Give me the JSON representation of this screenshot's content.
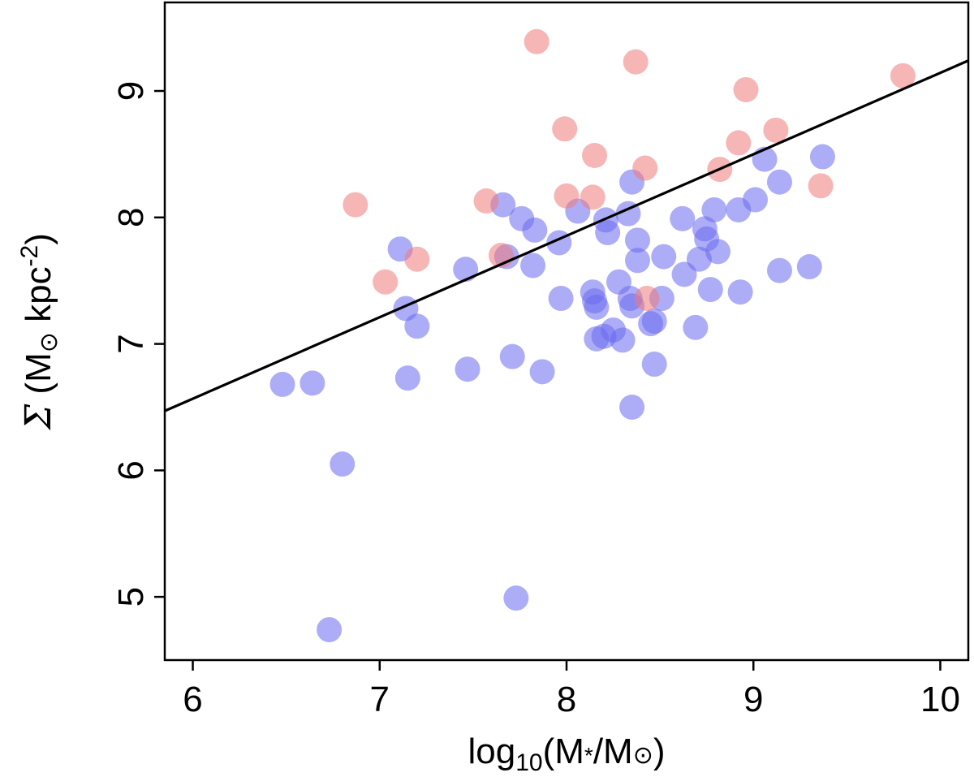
{
  "chart_data": {
    "type": "scatter",
    "title": "",
    "xlabel": {
      "prefix": "log",
      "subscript": "10",
      "open": "(M",
      "star": "*",
      "slash": "/M",
      "sun": "⊙",
      "close": ")"
    },
    "ylabel": {
      "sigma": "Σ",
      "open": " (M",
      "sun": "⊙",
      "unit": " kpc",
      "exp": "-2",
      "close": ")"
    },
    "xlim": [
      5.85,
      10.15
    ],
    "ylim": [
      4.5,
      9.7
    ],
    "xticks": [
      6,
      7,
      8,
      9,
      10
    ],
    "yticks": [
      5,
      6,
      7,
      8,
      9
    ],
    "grid": false,
    "colors": {
      "blue": "#6a6af0",
      "red": "#f07a7a",
      "line": "#000000",
      "frame": "#000000"
    },
    "fit_line": {
      "x": [
        5.85,
        10.15
      ],
      "y": [
        6.47,
        9.24
      ]
    },
    "series": [
      {
        "name": "blue",
        "color": "#6a6af0",
        "points": [
          [
            6.48,
            6.68
          ],
          [
            6.64,
            6.69
          ],
          [
            6.73,
            4.74
          ],
          [
            6.8,
            6.05
          ],
          [
            7.11,
            7.75
          ],
          [
            7.14,
            7.28
          ],
          [
            7.15,
            6.73
          ],
          [
            7.2,
            7.14
          ],
          [
            7.46,
            7.59
          ],
          [
            7.47,
            6.8
          ],
          [
            7.66,
            8.1
          ],
          [
            7.68,
            7.69
          ],
          [
            7.71,
            6.9
          ],
          [
            7.73,
            4.99
          ],
          [
            7.76,
            7.99
          ],
          [
            7.82,
            7.62
          ],
          [
            7.83,
            7.9
          ],
          [
            7.87,
            6.78
          ],
          [
            7.96,
            7.8
          ],
          [
            7.97,
            7.36
          ],
          [
            8.06,
            8.05
          ],
          [
            8.14,
            7.41
          ],
          [
            8.15,
            7.34
          ],
          [
            8.16,
            7.29
          ],
          [
            8.16,
            7.04
          ],
          [
            8.2,
            7.06
          ],
          [
            8.21,
            7.98
          ],
          [
            8.22,
            7.88
          ],
          [
            8.25,
            7.11
          ],
          [
            8.28,
            7.49
          ],
          [
            8.3,
            7.03
          ],
          [
            8.33,
            8.03
          ],
          [
            8.34,
            7.36
          ],
          [
            8.35,
            7.3
          ],
          [
            8.35,
            6.5
          ],
          [
            8.35,
            8.28
          ],
          [
            8.38,
            7.82
          ],
          [
            8.38,
            7.66
          ],
          [
            8.45,
            7.16
          ],
          [
            8.47,
            7.18
          ],
          [
            8.47,
            6.84
          ],
          [
            8.51,
            7.36
          ],
          [
            8.52,
            7.69
          ],
          [
            8.62,
            7.99
          ],
          [
            8.63,
            7.55
          ],
          [
            8.69,
            7.13
          ],
          [
            8.71,
            7.67
          ],
          [
            8.74,
            7.91
          ],
          [
            8.75,
            7.83
          ],
          [
            8.77,
            7.43
          ],
          [
            8.79,
            8.06
          ],
          [
            8.81,
            7.73
          ],
          [
            8.92,
            8.06
          ],
          [
            8.93,
            7.41
          ],
          [
            9.01,
            8.14
          ],
          [
            9.06,
            8.46
          ],
          [
            9.14,
            8.28
          ],
          [
            9.14,
            7.58
          ],
          [
            9.3,
            7.61
          ],
          [
            9.37,
            8.48
          ]
        ]
      },
      {
        "name": "red",
        "color": "#f07a7a",
        "points": [
          [
            6.87,
            8.1
          ],
          [
            7.03,
            7.49
          ],
          [
            7.2,
            7.67
          ],
          [
            7.57,
            8.13
          ],
          [
            7.65,
            7.7
          ],
          [
            7.84,
            9.39
          ],
          [
            7.99,
            8.7
          ],
          [
            8.0,
            8.17
          ],
          [
            8.14,
            8.16
          ],
          [
            8.15,
            8.49
          ],
          [
            8.37,
            9.23
          ],
          [
            8.42,
            8.39
          ],
          [
            8.43,
            7.36
          ],
          [
            8.82,
            8.38
          ],
          [
            8.92,
            8.59
          ],
          [
            8.96,
            9.01
          ],
          [
            9.12,
            8.69
          ],
          [
            9.36,
            8.25
          ],
          [
            9.8,
            9.12
          ]
        ]
      }
    ]
  }
}
